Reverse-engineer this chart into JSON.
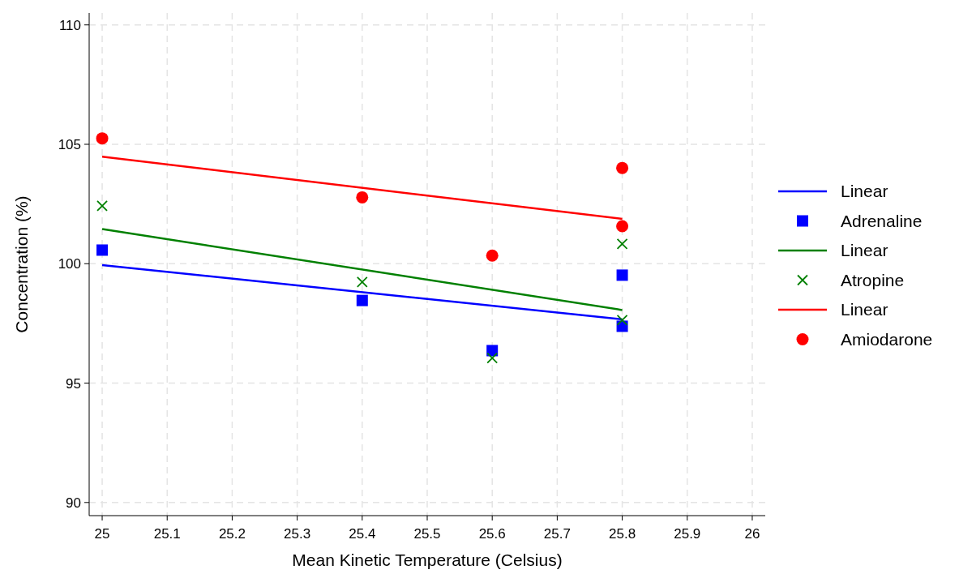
{
  "chart_data": {
    "type": "scatter",
    "xlabel": "Mean Kinetic Temperature (Celsius)",
    "ylabel": "Concentration (%)",
    "xlim": [
      24.98,
      26.02
    ],
    "xticks": [
      25,
      25.1,
      25.2,
      25.3,
      25.4,
      25.5,
      25.6,
      25.7,
      25.8,
      25.9,
      26
    ],
    "ylim": [
      89.45,
      110.5
    ],
    "yticks": [
      90,
      95,
      100,
      105,
      110
    ],
    "grid": true,
    "legend": "right",
    "series": [
      {
        "name": "Linear",
        "type": "line",
        "color": "#0000ff",
        "marker": "none",
        "line_style": "solid",
        "x": [
          25,
          25.8
        ],
        "values": [
          99.94,
          97.67
        ]
      },
      {
        "name": "Adrenaline",
        "type": "scatter",
        "color": "#0000ff",
        "marker": "square",
        "x": [
          25,
          25.4,
          25.6,
          25.8,
          25.8
        ],
        "values": [
          100.57,
          98.46,
          96.36,
          99.52,
          97.38
        ]
      },
      {
        "name": "Linear",
        "type": "line",
        "color": "#008000",
        "marker": "none",
        "line_style": "solid",
        "x": [
          25,
          25.8
        ],
        "values": [
          101.45,
          98.06
        ]
      },
      {
        "name": "Atropine",
        "type": "scatter",
        "color": "#008000",
        "marker": "cross",
        "x": [
          25,
          25.4,
          25.6,
          25.8,
          25.8
        ],
        "values": [
          102.42,
          99.23,
          96.05,
          100.83,
          97.64
        ]
      },
      {
        "name": "Linear",
        "type": "line",
        "color": "#ff0000",
        "marker": "none",
        "line_style": "solid",
        "x": [
          25,
          25.8
        ],
        "values": [
          104.48,
          101.88
        ]
      },
      {
        "name": "Amiodarone",
        "type": "scatter",
        "color": "#ff0000",
        "marker": "circle",
        "x": [
          25,
          25.4,
          25.6,
          25.8,
          25.8
        ],
        "values": [
          105.25,
          102.78,
          100.34,
          104.01,
          101.57
        ]
      }
    ]
  }
}
